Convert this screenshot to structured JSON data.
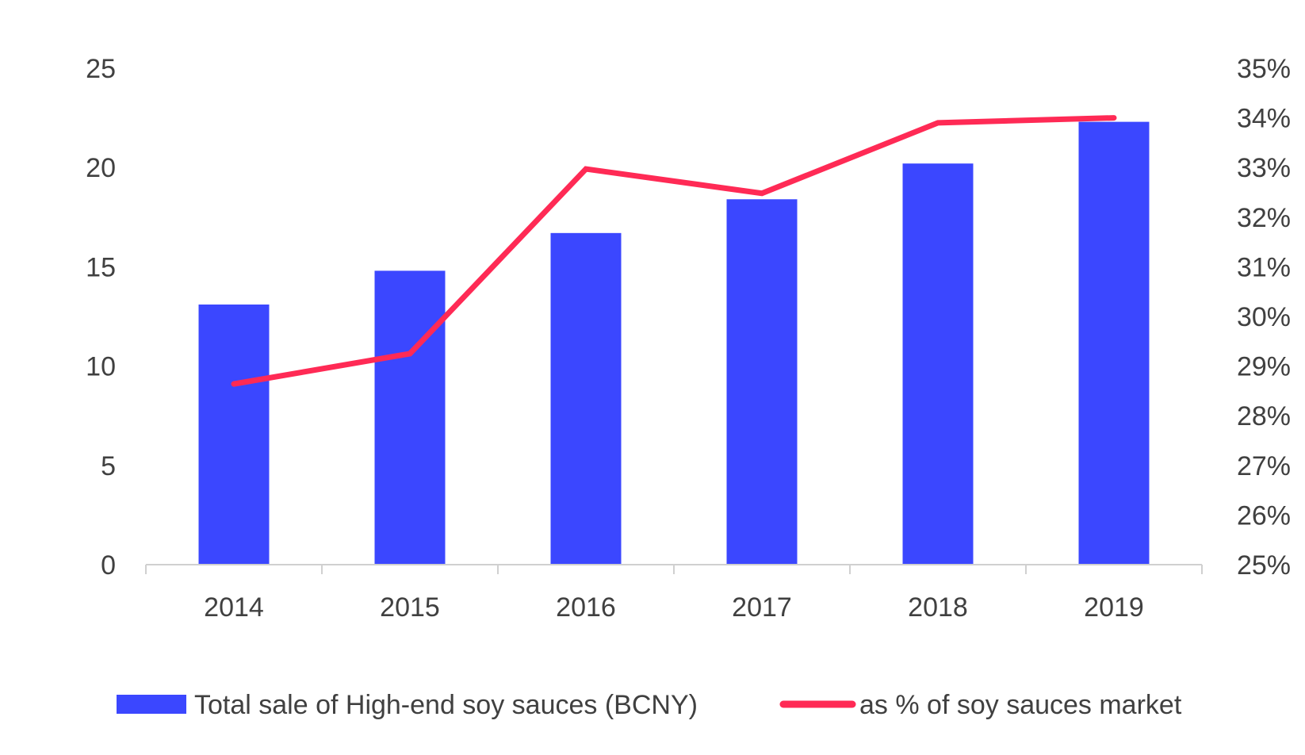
{
  "chart_data": {
    "type": "bar",
    "title": "",
    "xlabel": "",
    "ylabel": "",
    "categories": [
      "2014",
      "2015",
      "2016",
      "2017",
      "2018",
      "2019"
    ],
    "series": [
      {
        "name": "Total sale of High-end soy sauces (BCNY)",
        "type": "bar",
        "axis": "left",
        "color": "#3b47ff",
        "values": [
          13.1,
          14.8,
          16.7,
          18.4,
          20.2,
          22.3
        ]
      },
      {
        "name": "as % of soy sauces market",
        "type": "line",
        "axis": "right",
        "color": "#ff2a55",
        "values": [
          0.2864,
          0.2925,
          0.3297,
          0.3248,
          0.339,
          0.34
        ]
      }
    ],
    "y_left": {
      "min": 0,
      "max": 25,
      "ticks": [
        0,
        5,
        10,
        15,
        20,
        25
      ],
      "tick_labels": [
        "0",
        "5",
        "10",
        "15",
        "20",
        "25"
      ]
    },
    "y_right": {
      "min": 0.25,
      "max": 0.35,
      "ticks": [
        0.25,
        0.26,
        0.27,
        0.28,
        0.29,
        0.3,
        0.31,
        0.32,
        0.33,
        0.34,
        0.35
      ],
      "tick_labels": [
        "25%",
        "26%",
        "27%",
        "28%",
        "29%",
        "30%",
        "31%",
        "32%",
        "33%",
        "34%",
        "35%"
      ]
    },
    "grid": false,
    "legend_position": "bottom"
  }
}
